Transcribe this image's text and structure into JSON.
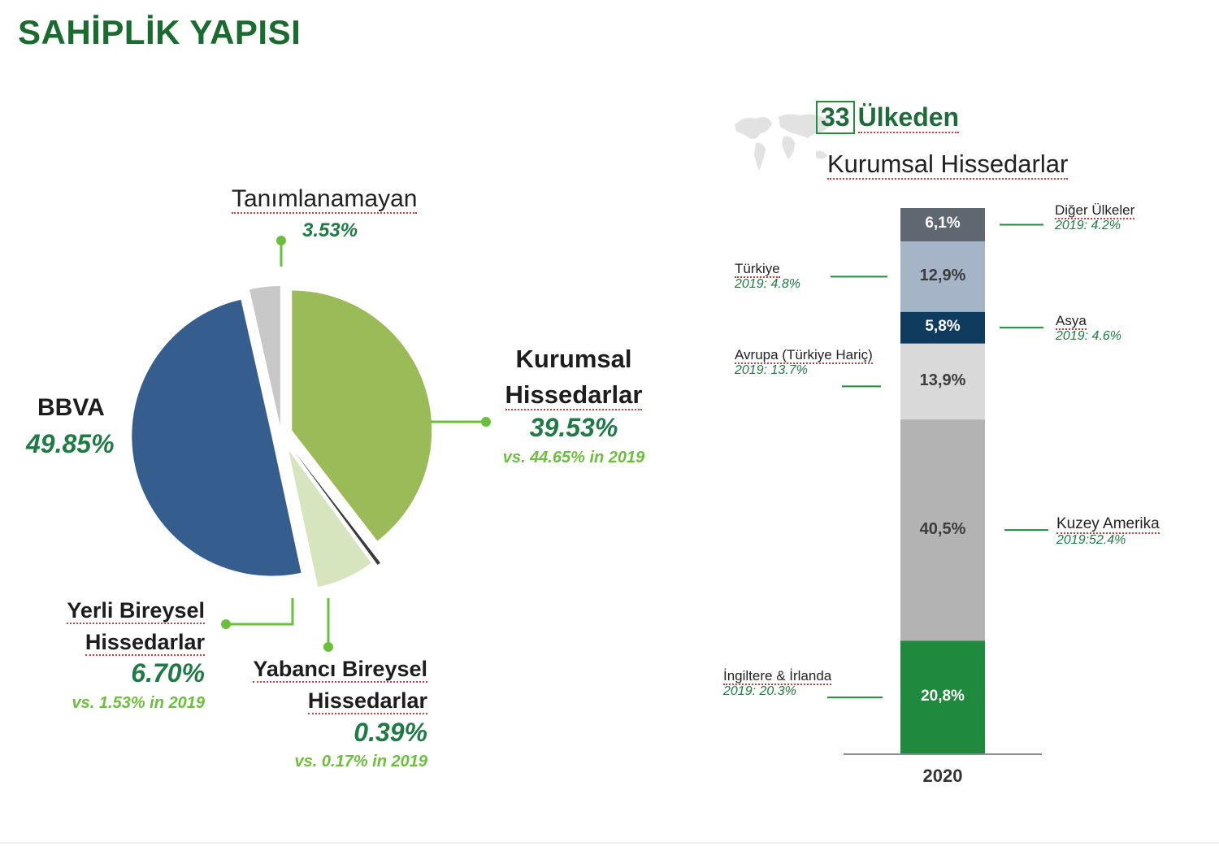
{
  "title": "SAHİPLİK YAPISI",
  "pie": {
    "slices": [
      {
        "key": "bbva",
        "name": "BBVA",
        "value": 49.85,
        "pct": "49.85%",
        "prev": "",
        "color": "#355e8f"
      },
      {
        "key": "kurumsal",
        "name_lines": [
          "Kurumsal",
          "Hissedarlar"
        ],
        "value": 39.53,
        "pct": "39.53%",
        "prev": "vs. 44.65% in 2019",
        "color": "#9bbb59"
      },
      {
        "key": "yabanci",
        "name_lines": [
          "Yabancı Bireysel",
          "Hissedarlar"
        ],
        "value": 0.39,
        "pct": "0.39%",
        "prev": "vs. 0.17% in 2019",
        "color": "#3a3a3a"
      },
      {
        "key": "yerli",
        "name_lines": [
          "Yerli Bireysel",
          "Hissedarlar"
        ],
        "value": 6.7,
        "pct": "6.70%",
        "prev": "vs. 1.53% in 2019",
        "color": "#d6e5bd"
      },
      {
        "key": "tanim",
        "name": "Tanımlanamayan",
        "value": 3.53,
        "pct": "3.53%",
        "prev": "",
        "color": "#c8c8c8"
      }
    ]
  },
  "bar_header": {
    "count": "33",
    "line1": "Ülkeden",
    "line2": "Kurumsal Hissedarlar"
  },
  "chart_data": [
    {
      "type": "pie",
      "title": "",
      "labels": [
        "BBVA",
        "Kurumsal Hissedarlar",
        "Yabancı Bireysel Hissedarlar",
        "Yerli Bireysel Hissedarlar",
        "Tanımlanamayan"
      ],
      "values": [
        49.85,
        39.53,
        0.39,
        6.7,
        3.53
      ],
      "previous_2019": {
        "Kurumsal Hissedarlar": 44.65,
        "Yabancı Bireysel Hissedarlar": 0.17,
        "Yerli Bireysel Hissedarlar": 1.53
      }
    },
    {
      "type": "bar",
      "stacked": true,
      "title": "33 Ülkeden Kurumsal Hissedarlar",
      "categories": [
        "2020"
      ],
      "series": [
        {
          "name": "İngiltere & İrlanda",
          "values": [
            20.8
          ],
          "label": "20,8%",
          "prev": "2019: 20.3%",
          "color": "#1f8a3d",
          "text_color": "#ffffff"
        },
        {
          "name": "Kuzey Amerika",
          "values": [
            40.5
          ],
          "label": "40,5%",
          "prev": "2019:52.4%",
          "color": "#b3b3b3",
          "text_color": "#3c3c3c"
        },
        {
          "name": "Avrupa (Türkiye Hariç)",
          "values": [
            13.9
          ],
          "label": "13,9%",
          "prev": "2019: 13.7%",
          "color": "#d9d9d9",
          "text_color": "#3c3c3c"
        },
        {
          "name": "Asya",
          "values": [
            5.8
          ],
          "label": "5,8%",
          "prev": "2019: 4.6%",
          "color": "#0f3b5e",
          "text_color": "#ffffff"
        },
        {
          "name": "Türkiye",
          "values": [
            12.9
          ],
          "label": "12,9%",
          "prev": "2019: 4.8%",
          "color": "#a6b4c8",
          "text_color": "#3c3c3c"
        },
        {
          "name": "Diğer Ülkeler",
          "values": [
            6.1
          ],
          "label": "6,1%",
          "prev": "2019: 4.2%",
          "color": "#5f6770",
          "text_color": "#ffffff"
        }
      ]
    }
  ]
}
